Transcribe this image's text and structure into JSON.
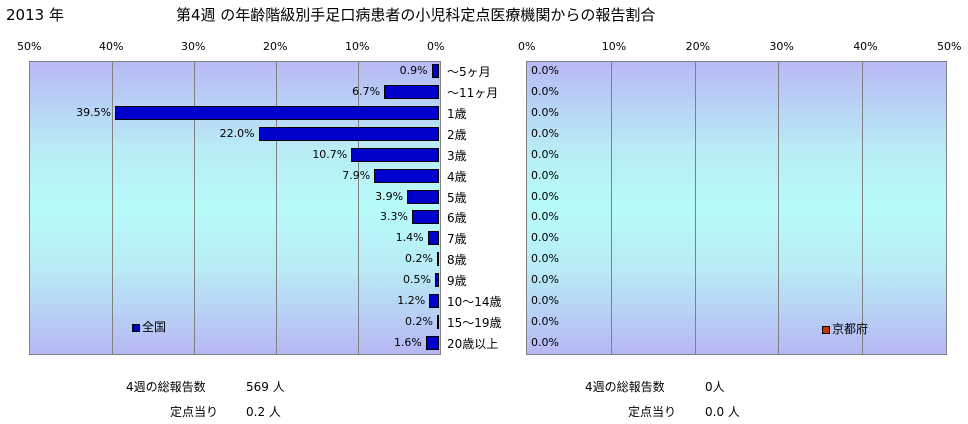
{
  "header": {
    "year": "2013 年",
    "title": "第4週 の年齢階級別手足口病患者の小児科定点医療機関からの報告割合"
  },
  "chart_data": [
    {
      "type": "bar",
      "orientation": "horizontal",
      "direction": "right-to-left",
      "categories": [
        "～5ヶ月",
        "～11ヶ月",
        "1歳",
        "2歳",
        "3歳",
        "4歳",
        "5歳",
        "6歳",
        "7歳",
        "8歳",
        "9歳",
        "10～14歳",
        "15～19歳",
        "20歳以上"
      ],
      "series": [
        {
          "name": "全国",
          "color": "#0000cc",
          "values": [
            0.9,
            6.7,
            39.5,
            22.0,
            10.7,
            7.9,
            3.9,
            3.3,
            1.4,
            0.2,
            0.5,
            1.2,
            0.2,
            1.6
          ],
          "labels": [
            "0.9%",
            "6.7%",
            "39.5%",
            "22.0%",
            "10.7%",
            "7.9%",
            "3.9%",
            "3.3%",
            "1.4%",
            "0.2%",
            "0.5%",
            "1.2%",
            "0.2%",
            "1.6%"
          ]
        }
      ],
      "xlim": [
        0,
        50
      ],
      "ticks": [
        "50%",
        "40%",
        "30%",
        "20%",
        "10%",
        "0%"
      ],
      "grid": true,
      "legend": "bottom-left"
    },
    {
      "type": "bar",
      "orientation": "horizontal",
      "direction": "left-to-right",
      "categories": [
        "～5ヶ月",
        "～11ヶ月",
        "1歳",
        "2歳",
        "3歳",
        "4歳",
        "5歳",
        "6歳",
        "7歳",
        "8歳",
        "9歳",
        "10～14歳",
        "15～19歳",
        "20歳以上"
      ],
      "series": [
        {
          "name": "京都府",
          "color": "#cc3300",
          "values": [
            0,
            0,
            0,
            0,
            0,
            0,
            0,
            0,
            0,
            0,
            0,
            0,
            0,
            0
          ],
          "labels": [
            "0.0%",
            "0.0%",
            "0.0%",
            "0.0%",
            "0.0%",
            "0.0%",
            "0.0%",
            "0.0%",
            "0.0%",
            "0.0%",
            "0.0%",
            "0.0%",
            "0.0%",
            "0.0%"
          ]
        }
      ],
      "xlim": [
        0,
        50
      ],
      "ticks": [
        "0%",
        "10%",
        "20%",
        "30%",
        "40%",
        "50%"
      ],
      "grid": true,
      "legend": "bottom-right"
    }
  ],
  "footer": {
    "left_total_label": "4週の総報告数",
    "left_total_value": "569 人",
    "left_per_label": "定点当り",
    "left_per_value": "0.2 人",
    "right_total_label": "4週の総報告数",
    "right_total_value": "0人",
    "right_per_label": "定点当り",
    "right_per_value": "0.0 人"
  }
}
